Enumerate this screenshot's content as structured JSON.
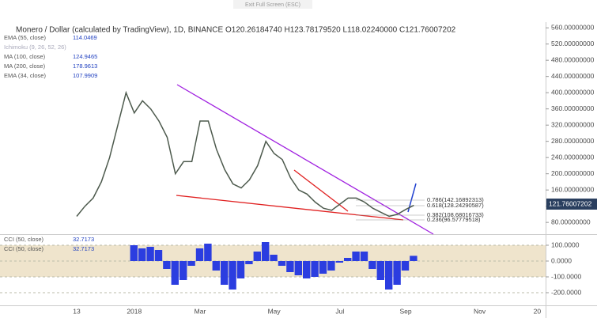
{
  "screen_hint": "Exit Full Screen (ESC)",
  "chart_data": [
    {
      "type": "line",
      "title": "Monero / Dollar (calculated by TradingView), 1D, BINANCE",
      "subtitle": "O120.26184740 H123.78179520 L118.02240000 C121.76007202",
      "last_price_label": "121.76007202",
      "indicators": [
        {
          "name": "EMA (55, close)",
          "value": "114.0469"
        },
        {
          "name": "Ichimoku (9, 26, 52, 26)"
        },
        {
          "name": "MA (100, close)",
          "value": "124.9465"
        },
        {
          "name": "MA (200, close)",
          "value": "178.9613"
        },
        {
          "name": "EMA (34, close)",
          "value": "107.9909"
        }
      ],
      "annotations": [
        "0.786(142.16892313)",
        "0.618(128.24290587)",
        "0.382(108.68016733)",
        "0.236(96.57779518)"
      ],
      "categories": [
        "13",
        null,
        null,
        null,
        null,
        null,
        null,
        "2018",
        null,
        null,
        null,
        null,
        null,
        null,
        null,
        "Mar",
        null,
        null,
        null,
        null,
        null,
        null,
        null,
        null,
        "May",
        null,
        null,
        null,
        null,
        null,
        null,
        null,
        "Jul",
        null,
        null,
        null,
        null,
        null,
        null,
        null,
        "Sep",
        null,
        null,
        null,
        null,
        null,
        null,
        null,
        null,
        "Nov",
        null,
        null,
        null,
        null,
        null,
        null,
        "20"
      ],
      "series": [
        {
          "name": "Close",
          "color": "#4d5a4d",
          "values": [
            95,
            120,
            140,
            180,
            240,
            320,
            400,
            350,
            380,
            360,
            330,
            290,
            200,
            230,
            230,
            330,
            330,
            260,
            210,
            175,
            165,
            185,
            220,
            280,
            250,
            235,
            190,
            160,
            150,
            130,
            115,
            110,
            125,
            140,
            140,
            130,
            115,
            105,
            95,
            100,
            112,
            122,
            null,
            null,
            null,
            null,
            null,
            null,
            null,
            null,
            null,
            null,
            null,
            null,
            null,
            null,
            null
          ]
        }
      ],
      "ylim": [
        53,
        574
      ],
      "yticks": [
        {
          "value": 80,
          "label": "80.00000000"
        },
        {
          "value": 120,
          "label": "120.00000000"
        },
        {
          "value": 160,
          "label": "160.00000000"
        },
        {
          "value": 200,
          "label": "200.00000000"
        },
        {
          "value": 240,
          "label": "240.00000000"
        },
        {
          "value": 280,
          "label": "280.00000000"
        },
        {
          "value": 320,
          "label": "320.00000000"
        },
        {
          "value": 360,
          "label": "360.00000000"
        },
        {
          "value": 400,
          "label": "400.00000000"
        },
        {
          "value": 440,
          "label": "440.00000000"
        },
        {
          "value": 480,
          "label": "480.00000000"
        },
        {
          "value": 520,
          "label": "520.00000000"
        },
        {
          "value": 560,
          "label": "560.00000000"
        }
      ]
    },
    {
      "type": "bar",
      "indicators": [
        {
          "name": "CCI (50, close)",
          "value": "32.7173"
        },
        {
          "name": "CCI (50, close)",
          "value": "32.7173"
        }
      ],
      "series": [
        {
          "name": "CCI",
          "color": "#2b3de0",
          "values": [
            null,
            null,
            null,
            null,
            null,
            null,
            null,
            100,
            80,
            90,
            70,
            -50,
            -150,
            -120,
            -30,
            80,
            110,
            -60,
            -150,
            -180,
            -110,
            -20,
            60,
            120,
            40,
            -30,
            -70,
            -90,
            -110,
            -100,
            -80,
            -60,
            -10,
            20,
            60,
            60,
            -50,
            -120,
            -180,
            -150,
            -60,
            33
          ]
        }
      ],
      "band_color": "#efe4cc",
      "ylim": [
        -275,
        160
      ],
      "yticks": [
        {
          "value": -200,
          "label": "-200.0000"
        },
        {
          "value": -100,
          "label": "-100.0000"
        },
        {
          "value": 0,
          "label": "0.0000"
        },
        {
          "value": 100,
          "label": "100.0000"
        }
      ]
    }
  ]
}
